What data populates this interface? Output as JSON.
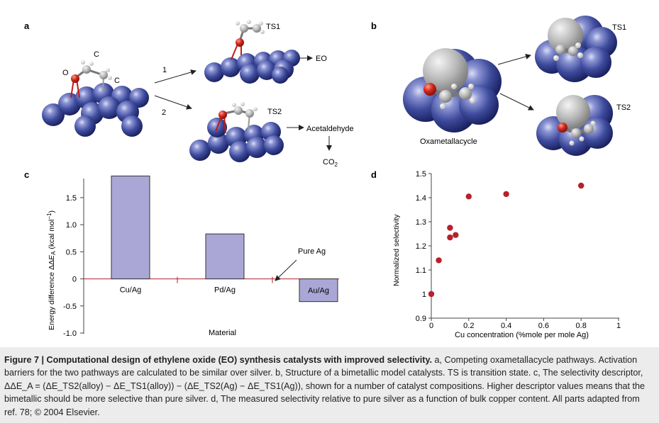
{
  "panels": {
    "a": {
      "letter": "a",
      "atom_labels": [
        "C",
        "O",
        "C"
      ],
      "paths": [
        "1",
        "2"
      ],
      "ts1": "TS1",
      "ts2": "TS2",
      "eo": "EO",
      "acetaldehyde": "Acetaldehyde",
      "co2_main": "CO",
      "co2_sub": "2"
    },
    "b": {
      "letter": "b",
      "ts1": "TS1",
      "ts2": "TS2",
      "oxametallacycle": "Oxametallacycle"
    },
    "c": {
      "letter": "c",
      "annotation": "Pure Ag"
    },
    "d": {
      "letter": "d"
    }
  },
  "chart_data": [
    {
      "type": "bar",
      "panel": "c",
      "categories": [
        "Cu/Ag",
        "Pd/Ag",
        "Au/Ag"
      ],
      "values": [
        1.9,
        0.83,
        -0.42
      ],
      "ylim": [
        -1.0,
        1.8
      ],
      "yticks": [
        "1.5",
        "1.0",
        "0.5",
        "0",
        "-0.5",
        "-1.0"
      ],
      "ylabel_parts": [
        "Energy difference ΔΔ",
        "E",
        "A",
        " (kcal mol",
        "−1",
        ")"
      ],
      "xlabel": "Material",
      "bar_color": "#aaa7d6"
    },
    {
      "type": "scatter",
      "panel": "d",
      "x": [
        0,
        0.04,
        0.1,
        0.1,
        0.13,
        0.2,
        0.4,
        0.8
      ],
      "y": [
        1.0,
        1.14,
        1.235,
        1.275,
        1.245,
        1.405,
        1.415,
        1.45
      ],
      "xlim": [
        0,
        1
      ],
      "ylim": [
        0.9,
        1.5
      ],
      "xticks": [
        "0",
        "0.2",
        "0.4",
        "0.6",
        "0.8",
        "1"
      ],
      "yticks": [
        "1.5",
        "1.4",
        "1.3",
        "1.2",
        "1.1",
        "1",
        "0.9"
      ],
      "xlabel": "Cu concentration (%mole  per mole Ag)",
      "ylabel": "Normalized selectivity",
      "point_color": "#b8202a"
    }
  ],
  "caption": {
    "title": "Figure 7 | Computational design of ethylene oxide (EO) synthesis catalysts with improved selectivity.",
    "body": " a, Competing oxametallacycle pathways. Activation barriers for the two pathways are calculated to be similar over silver. b, Structure of a bimetallic model catalysts. TS is transition state. c, The selectivity descriptor, ΔΔE_A = (ΔE_TS2(alloy) − ΔE_TS1(alloy)) − (ΔE_TS2(Ag) − ΔE_TS1(Ag)), shown for a number of catalyst compositions. Higher descriptor values means that the bimetallic should be more selective than pure silver. d, The measured selectivity relative to pure silver as a function of bulk copper content. All parts adapted from ref. 78; © 2004 Elsevier."
  }
}
